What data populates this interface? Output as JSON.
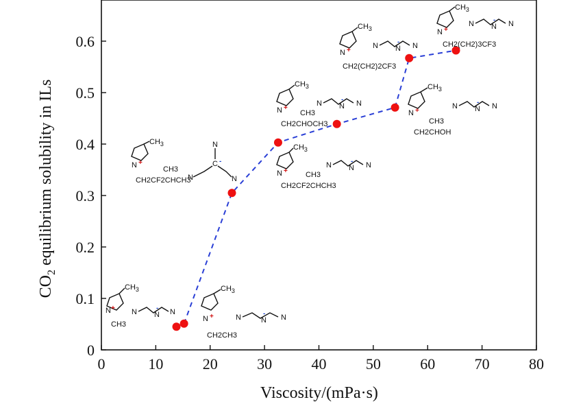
{
  "chart_data": {
    "type": "line",
    "xlabel": "Viscosity/(mPa·s)",
    "ylabel_main": "CO",
    "ylabel_sub": "2",
    "ylabel_rest": " equilibrium solubility in ILs",
    "xlim": [
      0,
      80
    ],
    "ylim": [
      0,
      0.68
    ],
    "x_ticks": [
      0,
      10,
      20,
      30,
      40,
      50,
      60,
      70,
      80
    ],
    "x_tick_labels": [
      "0",
      "10",
      "20",
      "30",
      "40",
      "50",
      "60",
      "70",
      "80"
    ],
    "y_ticks": [
      0,
      0.1,
      0.2,
      0.3,
      0.4,
      0.5,
      0.6
    ],
    "y_tick_labels": [
      "0",
      "0.1",
      "0.2",
      "0.3",
      "0.4",
      "0.5",
      "0.6"
    ],
    "grid": false,
    "series": [
      {
        "name": "CO2 solubility",
        "marker_color": "#ee1111",
        "line_color": "#2a3fd6",
        "line_style": "dashed",
        "x": [
          13.8,
          15.2,
          24.0,
          32.5,
          43.3,
          54.0,
          56.6,
          65.2
        ],
        "y": [
          0.045,
          0.051,
          0.305,
          0.403,
          0.439,
          0.471,
          0.567,
          0.582
        ],
        "line_from_index": 1
      }
    ]
  },
  "structures": {
    "cation_label": "N",
    "cation_charge": "+",
    "methyl": "CH",
    "methyl_sub": "3",
    "anion_label": "N",
    "anion_charge": "-",
    "s1_tail": "CH3",
    "s2_tail": "CH2CH3",
    "s3_tail": "CH2CF2CHCH3",
    "s3_branch": "CH3",
    "s4_tail": "CH2CF2CHCH3",
    "s4_branch": "CH3",
    "s5_tail": "CH2CHOCH3",
    "s5_branch": "CH3",
    "s6_tail": "CH2CHOH",
    "s6_branch": "CH3",
    "s7_tail": "CH2(CH2)2CF3",
    "s8_tail": "CH2(CH2)3CF3",
    "tcm_top_n": "N",
    "tcm_c": "C"
  }
}
